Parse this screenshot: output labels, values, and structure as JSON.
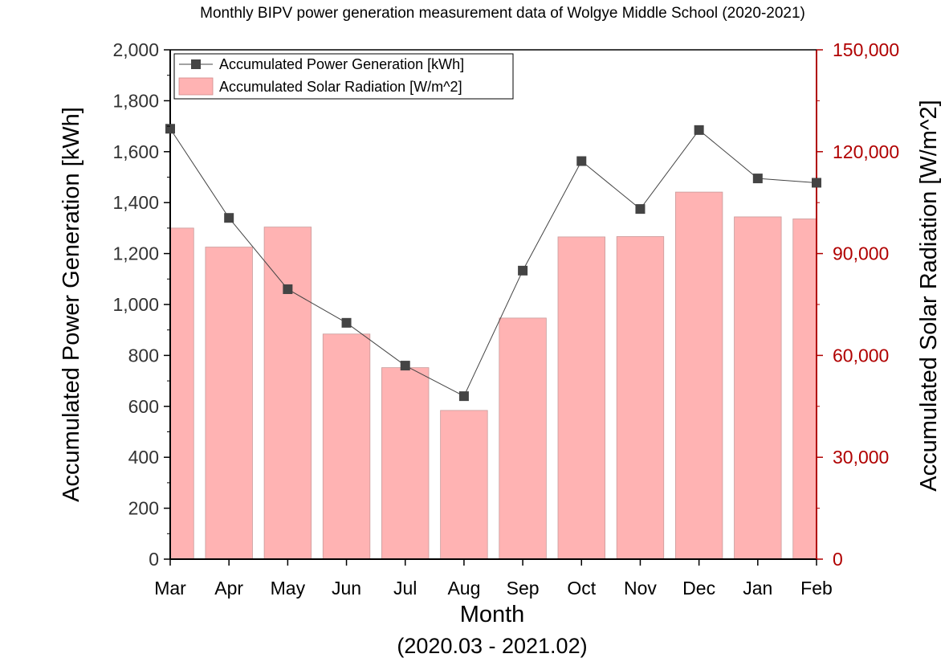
{
  "chart_data": {
    "type": "bar+line",
    "title": "Monthly BIPV power generation measurement data of Wolgye Middle School (2020-2021)",
    "categories": [
      "Mar",
      "Apr",
      "May",
      "Jun",
      "Jul",
      "Aug",
      "Sep",
      "Oct",
      "Nov",
      "Dec",
      "Jan",
      "Feb"
    ],
    "xlabel": "Month",
    "xlabel_sub": "(2020.03 - 2021.02)",
    "ylabel_left": "Accumulated Power Generation [kWh]",
    "ylabel_right": "Accumulated Solar Radiation [W/m^2]",
    "ylim_left": [
      0,
      2000
    ],
    "ylim_right": [
      0,
      150000
    ],
    "yticks_left": [
      "0",
      "200",
      "400",
      "600",
      "800",
      "1,000",
      "1,200",
      "1,400",
      "1,600",
      "1,800",
      "2,000"
    ],
    "yticks_right": [
      "0",
      "30,000",
      "60,000",
      "90,000",
      "120,000",
      "150,000"
    ],
    "grid": false,
    "legend_position": "top-left",
    "series": [
      {
        "name": "Accumulated Power Generation [kWh]",
        "type": "line",
        "axis": "left",
        "marker": "square",
        "color": "#444444",
        "values": [
          1690,
          1340,
          1060,
          928,
          760,
          640,
          1133,
          1563,
          1375,
          1685,
          1495,
          1478
        ]
      },
      {
        "name": "Accumulated Solar Radiation [W/m^2]",
        "type": "bar",
        "axis": "right",
        "color": "#ffb3b3",
        "values": [
          97500,
          91900,
          97800,
          66300,
          56400,
          43800,
          71000,
          94900,
          95000,
          108100,
          100800,
          100200
        ]
      }
    ]
  }
}
